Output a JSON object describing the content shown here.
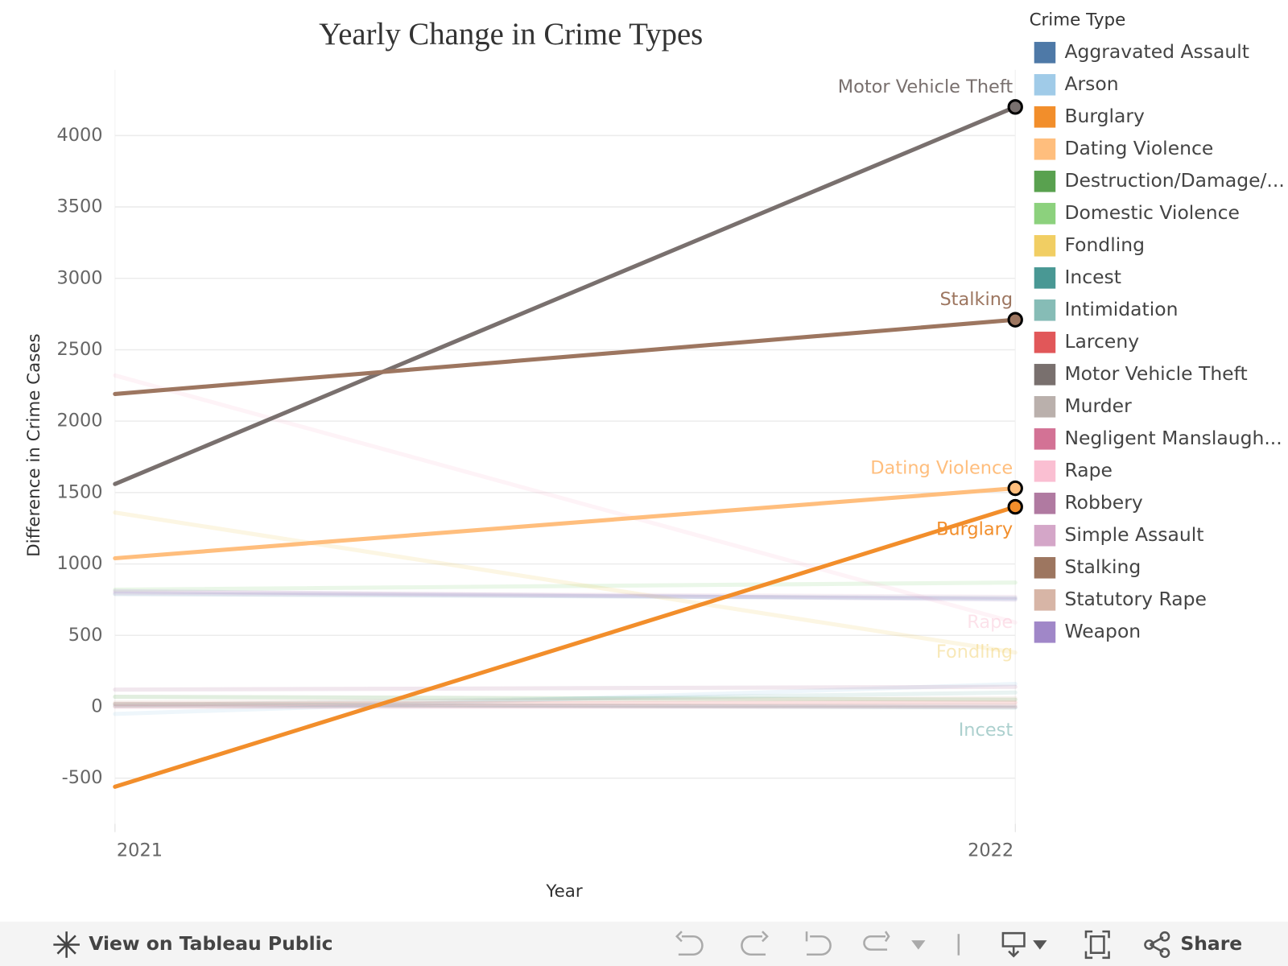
{
  "chart_data": {
    "type": "line",
    "title": "Yearly Change in Crime Types",
    "x_label": "Year",
    "y_label": "Difference in Crime Cases",
    "legend_title": "Crime Type",
    "x": [
      2021,
      2022
    ],
    "xlim": [
      2021,
      2022
    ],
    "xticks": [
      2021,
      2022
    ],
    "ylim": [
      -820,
      4460
    ],
    "yticks": [
      -500,
      0,
      500,
      1000,
      1500,
      2000,
      2500,
      3000,
      3500,
      4000
    ],
    "grid": true,
    "legend": "right",
    "series": [
      {
        "name": "Aggravated Assault",
        "color": "#4e79a7",
        "values": [
          790,
          760
        ],
        "highlighted": false
      },
      {
        "name": "Arson",
        "color": "#a0cbe8",
        "values": [
          -50,
          160
        ],
        "highlighted": false
      },
      {
        "name": "Burglary",
        "color": "#f28e2b",
        "values": [
          -560,
          1400
        ],
        "highlighted": true,
        "label": "below"
      },
      {
        "name": "Dating Violence",
        "color": "#ffbe7d",
        "values": [
          1040,
          1530
        ],
        "highlighted": true,
        "label": "above"
      },
      {
        "name": "Destruction/Damage/...",
        "color": "#59a14f",
        "values": [
          70,
          50
        ],
        "highlighted": false
      },
      {
        "name": "Domestic Violence",
        "color": "#8cd17d",
        "values": [
          820,
          870
        ],
        "highlighted": false
      },
      {
        "name": "Fondling",
        "color": "#f1ce63",
        "values": [
          1360,
          380
        ],
        "highlighted": false,
        "label": "center"
      },
      {
        "name": "Incest",
        "color": "#499894",
        "values": [
          20,
          -5
        ],
        "highlighted": false,
        "label": "below"
      },
      {
        "name": "Intimidation",
        "color": "#86bcb6",
        "values": [
          10,
          100
        ],
        "highlighted": false
      },
      {
        "name": "Larceny",
        "color": "#e15759",
        "values": [
          20,
          30
        ],
        "highlighted": false
      },
      {
        "name": "Motor Vehicle Theft",
        "color": "#79706e",
        "values": [
          1560,
          4200
        ],
        "highlighted": true,
        "label": "above"
      },
      {
        "name": "Murder",
        "color": "#bab0ac",
        "values": [
          5,
          10
        ],
        "highlighted": false
      },
      {
        "name": "Negligent Manslaugh...",
        "color": "#d37295",
        "values": [
          0,
          0
        ],
        "highlighted": false
      },
      {
        "name": "Rape",
        "color": "#fabfd2",
        "values": [
          2320,
          590
        ],
        "highlighted": false,
        "label": "center"
      },
      {
        "name": "Robbery",
        "color": "#b07aa1",
        "values": [
          120,
          140
        ],
        "highlighted": false
      },
      {
        "name": "Simple Assault",
        "color": "#d4a6c8",
        "values": [
          800,
          770
        ],
        "highlighted": false
      },
      {
        "name": "Stalking",
        "color": "#9d7660",
        "values": [
          2190,
          2710
        ],
        "highlighted": true,
        "label": "above"
      },
      {
        "name": "Statutory Rape",
        "color": "#d7b5a6",
        "values": [
          30,
          60
        ],
        "highlighted": false
      },
      {
        "name": "Weapon",
        "color": "#a087c8",
        "values": [
          810,
          750
        ],
        "highlighted": false
      }
    ]
  },
  "toolbar": {
    "view_link": "View on Tableau Public",
    "share": "Share"
  }
}
